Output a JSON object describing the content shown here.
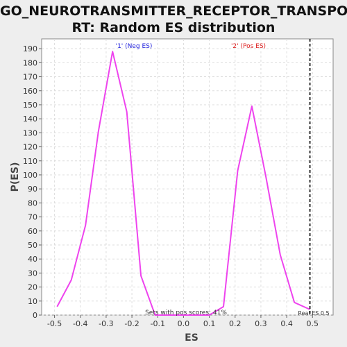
{
  "chart_data": {
    "type": "line",
    "title_line1": "GO_NEUROTRANSMITTER_RECEPTOR_TRANSPO",
    "title_line2": "RT: Random ES distribution",
    "xlabel": "ES",
    "ylabel": "P(ES)",
    "xlim": [
      -0.55,
      0.58
    ],
    "ylim": [
      0,
      197
    ],
    "x_ticks": [
      -0.5,
      -0.4,
      -0.3,
      -0.2,
      -0.1,
      0.0,
      0.1,
      0.2,
      0.3,
      0.4,
      0.5
    ],
    "x_tick_labels": [
      "-0.5",
      "-0.4",
      "-0.3",
      "-0.2",
      "-0.1",
      "0.0",
      "0.1",
      "0.2",
      "0.3",
      "0.4",
      "0.5"
    ],
    "y_ticks": [
      0,
      10,
      20,
      30,
      40,
      50,
      60,
      70,
      80,
      90,
      100,
      110,
      120,
      130,
      140,
      150,
      160,
      170,
      180,
      190
    ],
    "grid": true,
    "line_color": "#ee44ee",
    "series": [
      {
        "x": [
          -0.49,
          -0.435,
          -0.38,
          -0.33,
          -0.275,
          -0.22,
          -0.165,
          -0.11,
          0.0,
          0.05,
          0.1,
          0.155,
          0.21,
          0.265,
          0.32,
          0.375,
          0.43,
          0.49
        ],
        "y": [
          6,
          25,
          64,
          131,
          188,
          145,
          28,
          0,
          0,
          0,
          0,
          6,
          103,
          149,
          98,
          43,
          9,
          4
        ]
      }
    ],
    "annotations": {
      "neg_label": "'1' (Neg ES)",
      "neg_color": "#2222dd",
      "pos_label": "'2' (Pos ES)",
      "pos_color": "#dd2222",
      "pos_scores_text": "Sets with pos scores: 41%",
      "real_es_text": "Real ES 0.5",
      "real_es_value": 0.49
    }
  }
}
